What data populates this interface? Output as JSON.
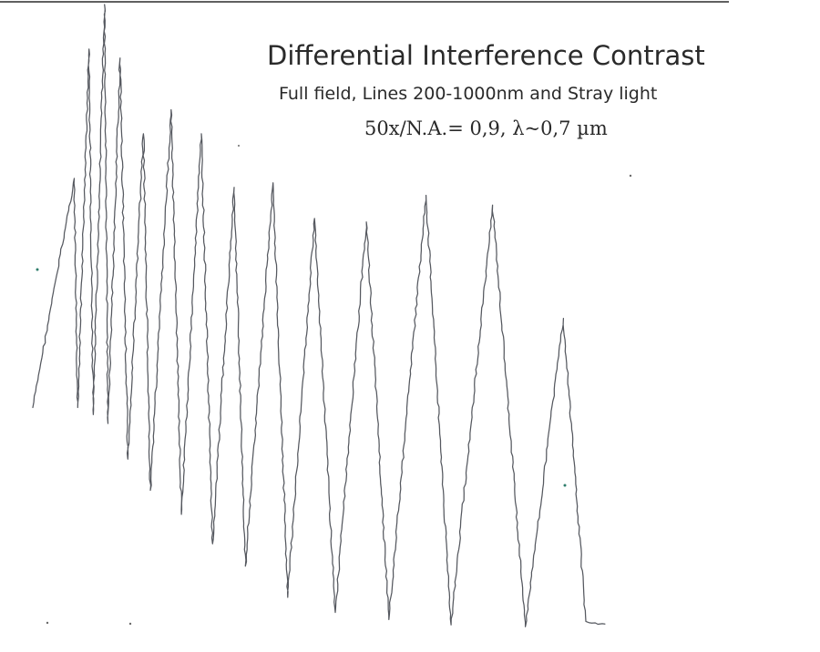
{
  "chart_data": {
    "type": "line",
    "title": "Differential Interference Contrast",
    "subtitle": "Full field, Lines 200-1000nm and Stray light",
    "subtitle2": "50x/N.A.= 0,9, λ~0,7 µm",
    "xlabel": "",
    "ylabel": "",
    "grid": false,
    "legend": "none",
    "line_color": "#55585f",
    "x_range": [
      0,
      660
    ],
    "y_range": [
      0,
      710
    ],
    "baseline_start": [
      0,
      258
    ],
    "peaks": [
      {
        "x": 48,
        "y": 515,
        "min_after_x": 52,
        "min_after_y": 258
      },
      {
        "x": 65,
        "y": 660,
        "min_after_x": 70,
        "min_after_y": 250
      },
      {
        "x": 83,
        "y": 710,
        "min_after_x": 87,
        "min_after_y": 240
      },
      {
        "x": 101,
        "y": 650,
        "min_after_x": 110,
        "min_after_y": 200
      },
      {
        "x": 128,
        "y": 565,
        "min_after_x": 136,
        "min_after_y": 165
      },
      {
        "x": 160,
        "y": 592,
        "min_after_x": 172,
        "min_after_y": 138
      },
      {
        "x": 195,
        "y": 565,
        "min_after_x": 208,
        "min_after_y": 105
      },
      {
        "x": 233,
        "y": 505,
        "min_after_x": 246,
        "min_after_y": 80
      },
      {
        "x": 278,
        "y": 510,
        "min_after_x": 295,
        "min_after_y": 45
      },
      {
        "x": 326,
        "y": 470,
        "min_after_x": 350,
        "min_after_y": 28
      },
      {
        "x": 386,
        "y": 466,
        "min_after_x": 412,
        "min_after_y": 20
      },
      {
        "x": 455,
        "y": 496,
        "min_after_x": 484,
        "min_after_y": 14
      },
      {
        "x": 532,
        "y": 485,
        "min_after_x": 570,
        "min_after_y": 12
      },
      {
        "x": 614,
        "y": 358,
        "min_after_x": 640,
        "min_after_y": 18
      }
    ],
    "end_point": [
      662,
      15
    ]
  }
}
